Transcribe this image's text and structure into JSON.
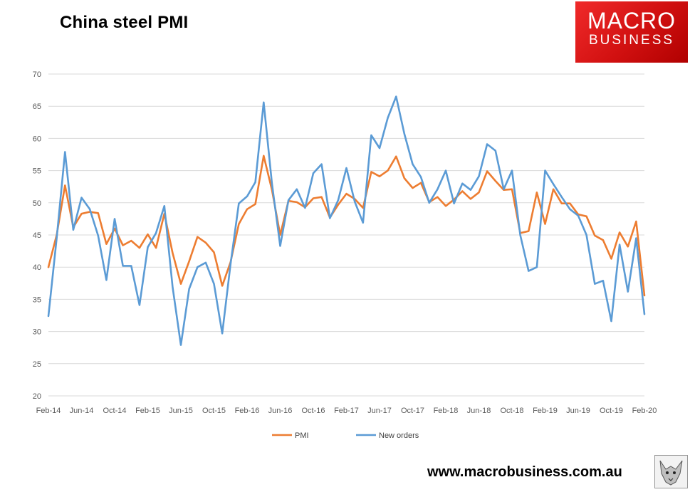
{
  "header": {
    "title": "China steel PMI",
    "logo_line1": "MACRO",
    "logo_line2": "BUSINESS",
    "website": "www.macrobusiness.com.au"
  },
  "colors": {
    "pmi": "#ED7D31",
    "new_orders": "#5B9BD5",
    "grid": "#D9D9D9",
    "logo_red": "#E41E1E"
  },
  "icons": {
    "logo_badge": "wolf-icon"
  },
  "chart_data": {
    "type": "line",
    "title": "China steel PMI",
    "xlabel": "",
    "ylabel": "",
    "ylim": [
      20,
      70
    ],
    "yticks": [
      20,
      25,
      30,
      35,
      40,
      45,
      50,
      55,
      60,
      65,
      70
    ],
    "x_tick_labels": [
      "Feb-14",
      "Jun-14",
      "Oct-14",
      "Feb-15",
      "Jun-15",
      "Oct-15",
      "Feb-16",
      "Jun-16",
      "Oct-16",
      "Feb-17",
      "Jun-17",
      "Oct-17",
      "Feb-18",
      "Jun-18",
      "Oct-18",
      "Feb-19",
      "Jun-19",
      "Oct-19",
      "Feb-20"
    ],
    "x_start": "Feb-14",
    "x_end": "Feb-20",
    "grid": "horizontal",
    "legend_position": "bottom",
    "series": [
      {
        "name": "PMI",
        "values": [
          40.0,
          45.0,
          52.7,
          46.2,
          48.3,
          48.6,
          48.4,
          43.6,
          46.0,
          43.4,
          44.1,
          43.0,
          45.1,
          43.0,
          48.3,
          42.2,
          37.4,
          40.9,
          44.7,
          43.8,
          42.3,
          37.1,
          40.8,
          46.7,
          49.0,
          49.8,
          57.3,
          52.0,
          45.0,
          50.3,
          50.1,
          49.3,
          50.7,
          50.9,
          47.7,
          49.7,
          51.4,
          50.6,
          49.2,
          54.8,
          54.1,
          55.0,
          57.2,
          53.8,
          52.3,
          53.1,
          50.1,
          50.9,
          49.5,
          50.5,
          51.8,
          50.6,
          51.6,
          54.9,
          53.4,
          52.0,
          52.1,
          45.3,
          45.6,
          51.6,
          46.7,
          52.1,
          49.9,
          49.9,
          48.2,
          47.9,
          44.9,
          44.2,
          41.3,
          45.4,
          43.2,
          47.1,
          35.6
        ]
      },
      {
        "name": "New orders",
        "values": [
          32.4,
          44.5,
          57.9,
          45.8,
          50.8,
          49.0,
          44.9,
          38.0,
          47.5,
          40.2,
          40.2,
          34.1,
          43.1,
          45.3,
          49.5,
          36.9,
          27.9,
          36.6,
          40.0,
          40.7,
          37.4,
          29.7,
          40.5,
          49.9,
          51.0,
          53.2,
          65.6,
          53.0,
          43.3,
          50.4,
          52.1,
          49.2,
          54.6,
          56.0,
          47.6,
          50.4,
          55.4,
          50.2,
          46.9,
          60.5,
          58.5,
          63.2,
          66.5,
          60.7,
          56.0,
          54.0,
          50.0,
          52.1,
          55.0,
          49.9,
          53.0,
          52.0,
          54.1,
          59.1,
          58.1,
          52.1,
          55.0,
          45.0,
          39.4,
          40.0,
          55.0,
          52.9,
          50.9,
          49.0,
          48.0,
          45.0,
          37.4,
          37.9,
          31.6,
          43.5,
          36.2,
          44.5,
          32.7
        ]
      }
    ]
  }
}
